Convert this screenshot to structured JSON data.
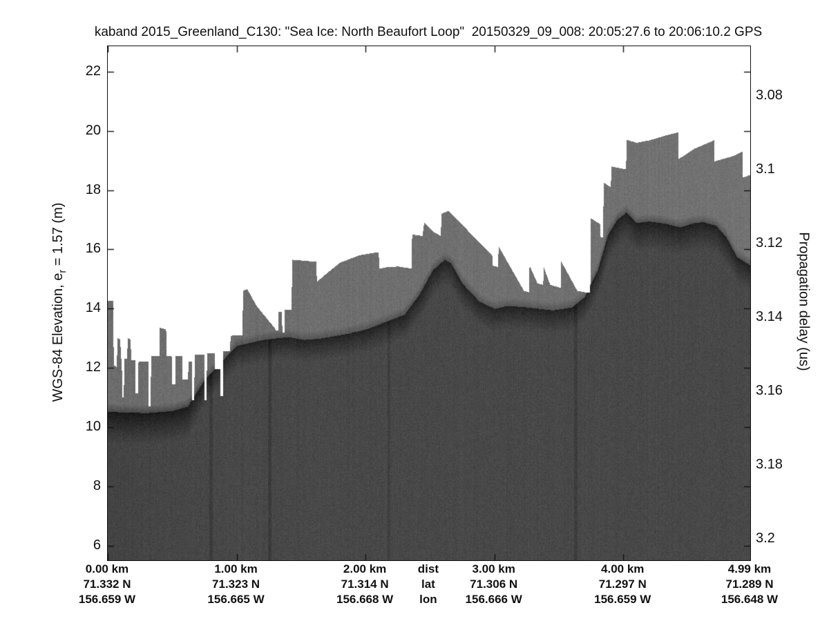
{
  "figure": {
    "title": "kaband 2015_Greenland_C130: \"Sea Ice: North Beaufort Loop\"  20150329_09_008: 20:05:27.6 to 20:06:10.2 GPS",
    "left_axis_label": {
      "pre": "WGS-84 Elevation, e",
      "sub": "r",
      "post": " = 1.57 (m)"
    },
    "right_axis_label": "Propagation delay (us)"
  },
  "chart_data": {
    "type": "heatmap",
    "description": "Ka-band radar altimeter echogram over sea ice: grayscale backscatter intensity versus along-track distance (km) and WGS-84 elevation (m); white = no return, gray speckle = snow/ice volume return, dark band = strong surface return.",
    "title": "kaband 2015_Greenland_C130: \"Sea Ice: North Beaufort Loop\"  20150329_09_008: 20:05:27.6 to 20:06:10.2 GPS",
    "ylabel_left": "WGS-84 Elevation, e_r = 1.57 (m)",
    "ylabel_right": "Propagation delay (us)",
    "xlim_km": [
      0,
      4.985
    ],
    "ylim_elev_m": [
      5.5,
      22.86
    ],
    "grid": false,
    "x_ticks_km": [
      0,
      1,
      2,
      3,
      4
    ],
    "y_ticks_left_m": [
      22,
      20,
      18,
      16,
      14,
      12,
      10,
      8,
      6
    ],
    "y_ticks_right_us": [
      3.08,
      3.1,
      3.12,
      3.14,
      3.16,
      3.18,
      3.2
    ],
    "right_axis_map": {
      "ref_delay_us": 3.1,
      "ref_elev_m": 18.69,
      "m_per_us": -124.7
    },
    "x_header_rows": [
      "dist",
      "lat",
      "lon"
    ],
    "x_columns": [
      {
        "km": 0,
        "dist": "0.00 km",
        "lat": "71.332 N",
        "lon": "156.659 W"
      },
      {
        "km": 1,
        "dist": "1.00 km",
        "lat": "71.323 N",
        "lon": "156.665 W"
      },
      {
        "km": 2,
        "dist": "2.00 km",
        "lat": "71.314 N",
        "lon": "156.668 W"
      },
      {
        "km": 2.492,
        "dist": "dist",
        "lat": "lat",
        "lon": "lon",
        "header": true
      },
      {
        "km": 3,
        "dist": "3.00 km",
        "lat": "71.306 N",
        "lon": "156.666 W"
      },
      {
        "km": 4,
        "dist": "4.00 km",
        "lat": "71.297 N",
        "lon": "156.659 W"
      },
      {
        "km": 4.985,
        "dist": "4.99 km",
        "lat": "71.289 N",
        "lon": "156.648 W"
      }
    ],
    "surface_profile_km_m": [
      [
        0.0,
        14.25
      ],
      [
        0.04,
        14.25
      ],
      [
        0.044,
        12.1
      ],
      [
        0.068,
        12.0
      ],
      [
        0.072,
        13.0
      ],
      [
        0.095,
        12.95
      ],
      [
        0.099,
        12.3
      ],
      [
        0.106,
        12.3
      ],
      [
        0.11,
        11.0
      ],
      [
        0.122,
        11.0
      ],
      [
        0.126,
        12.3
      ],
      [
        0.148,
        12.3
      ],
      [
        0.152,
        13.0
      ],
      [
        0.175,
        12.95
      ],
      [
        0.179,
        12.25
      ],
      [
        0.21,
        12.25
      ],
      [
        0.214,
        11.15
      ],
      [
        0.232,
        11.15
      ],
      [
        0.236,
        12.2
      ],
      [
        0.312,
        12.2
      ],
      [
        0.316,
        10.7
      ],
      [
        0.33,
        10.7
      ],
      [
        0.334,
        12.4
      ],
      [
        0.398,
        12.4
      ],
      [
        0.402,
        13.35
      ],
      [
        0.45,
        13.3
      ],
      [
        0.454,
        12.4
      ],
      [
        0.493,
        12.4
      ],
      [
        0.497,
        11.45
      ],
      [
        0.52,
        11.45
      ],
      [
        0.524,
        12.4
      ],
      [
        0.574,
        12.4
      ],
      [
        0.578,
        11.6
      ],
      [
        0.62,
        11.6
      ],
      [
        0.624,
        12.2
      ],
      [
        0.649,
        12.2
      ],
      [
        0.653,
        10.9
      ],
      [
        0.668,
        10.9
      ],
      [
        0.672,
        12.45
      ],
      [
        0.746,
        12.45
      ],
      [
        0.75,
        10.9
      ],
      [
        0.764,
        10.9
      ],
      [
        0.768,
        12.5
      ],
      [
        0.826,
        12.5
      ],
      [
        0.83,
        11.95
      ],
      [
        0.869,
        11.95
      ],
      [
        0.873,
        11.05
      ],
      [
        0.89,
        11.05
      ],
      [
        0.894,
        12.55
      ],
      [
        0.946,
        12.55
      ],
      [
        0.95,
        13.05
      ],
      [
        0.965,
        13.1
      ],
      [
        1.043,
        13.1
      ],
      [
        1.047,
        14.6
      ],
      [
        1.08,
        14.66
      ],
      [
        1.15,
        14.1
      ],
      [
        1.3,
        13.3
      ],
      [
        1.304,
        13.25
      ],
      [
        1.32,
        13.25
      ],
      [
        1.324,
        13.9
      ],
      [
        1.348,
        13.9
      ],
      [
        1.352,
        13.2
      ],
      [
        1.368,
        13.2
      ],
      [
        1.372,
        13.95
      ],
      [
        1.424,
        13.95
      ],
      [
        1.428,
        15.65
      ],
      [
        1.616,
        15.58
      ],
      [
        1.62,
        14.9
      ],
      [
        1.7,
        15.2
      ],
      [
        1.8,
        15.55
      ],
      [
        1.95,
        15.8
      ],
      [
        2.06,
        15.88
      ],
      [
        2.1,
        15.9
      ],
      [
        2.104,
        15.35
      ],
      [
        2.17,
        15.4
      ],
      [
        2.25,
        15.42
      ],
      [
        2.355,
        15.35
      ],
      [
        2.359,
        16.5
      ],
      [
        2.44,
        16.45
      ],
      [
        2.452,
        16.9
      ],
      [
        2.528,
        16.58
      ],
      [
        2.582,
        16.45
      ],
      [
        2.586,
        17.2
      ],
      [
        2.64,
        17.3
      ],
      [
        2.98,
        15.8
      ],
      [
        2.984,
        15.45
      ],
      [
        3.026,
        15.4
      ],
      [
        3.03,
        16.1
      ],
      [
        3.226,
        14.6
      ],
      [
        3.266,
        14.55
      ],
      [
        3.27,
        15.45
      ],
      [
        3.326,
        14.9
      ],
      [
        3.33,
        14.85
      ],
      [
        3.376,
        14.8
      ],
      [
        3.38,
        15.4
      ],
      [
        3.426,
        14.85
      ],
      [
        3.43,
        14.8
      ],
      [
        3.511,
        14.7
      ],
      [
        3.515,
        15.6
      ],
      [
        3.64,
        14.6
      ],
      [
        3.7,
        14.55
      ],
      [
        3.741,
        14.55
      ],
      [
        3.745,
        17.05
      ],
      [
        3.818,
        16.85
      ],
      [
        3.822,
        16.4
      ],
      [
        3.841,
        16.4
      ],
      [
        3.845,
        18.25
      ],
      [
        3.901,
        18.1
      ],
      [
        3.905,
        18.8
      ],
      [
        4.019,
        18.7
      ],
      [
        4.023,
        19.7
      ],
      [
        4.1,
        19.6
      ],
      [
        4.2,
        19.68
      ],
      [
        4.33,
        19.85
      ],
      [
        4.423,
        19.95
      ],
      [
        4.427,
        19.05
      ],
      [
        4.55,
        19.4
      ],
      [
        4.701,
        19.68
      ],
      [
        4.705,
        18.97
      ],
      [
        4.85,
        19.15
      ],
      [
        4.921,
        19.3
      ],
      [
        4.925,
        18.42
      ],
      [
        4.985,
        18.52
      ]
    ],
    "return_profile_km_m": [
      [
        0.0,
        10.52
      ],
      [
        0.3,
        10.48
      ],
      [
        0.5,
        10.55
      ],
      [
        0.62,
        10.7
      ],
      [
        0.75,
        11.6
      ],
      [
        0.9,
        12.3
      ],
      [
        1.0,
        12.75
      ],
      [
        1.2,
        12.95
      ],
      [
        1.4,
        13.05
      ],
      [
        1.52,
        12.95
      ],
      [
        1.65,
        13.0
      ],
      [
        1.85,
        13.15
      ],
      [
        2.0,
        13.3
      ],
      [
        2.15,
        13.55
      ],
      [
        2.3,
        13.8
      ],
      [
        2.42,
        14.5
      ],
      [
        2.52,
        15.3
      ],
      [
        2.61,
        15.65
      ],
      [
        2.66,
        15.55
      ],
      [
        2.75,
        14.85
      ],
      [
        2.88,
        14.25
      ],
      [
        3.0,
        14.0
      ],
      [
        3.1,
        14.1
      ],
      [
        3.25,
        14.05
      ],
      [
        3.45,
        13.95
      ],
      [
        3.6,
        14.05
      ],
      [
        3.7,
        14.4
      ],
      [
        3.8,
        15.3
      ],
      [
        3.88,
        16.5
      ],
      [
        3.95,
        17.0
      ],
      [
        4.02,
        17.25
      ],
      [
        4.1,
        16.9
      ],
      [
        4.2,
        16.95
      ],
      [
        4.32,
        16.88
      ],
      [
        4.44,
        16.75
      ],
      [
        4.55,
        16.9
      ],
      [
        4.62,
        16.93
      ],
      [
        4.72,
        16.8
      ],
      [
        4.8,
        16.4
      ],
      [
        4.88,
        15.75
      ],
      [
        4.99,
        15.45
      ]
    ],
    "return_smear_strength_km": [
      [
        0.0,
        1.0
      ],
      [
        0.62,
        1.0
      ],
      [
        0.8,
        0.6
      ],
      [
        1.6,
        0.55
      ],
      [
        2.2,
        0.6
      ],
      [
        2.55,
        0.75
      ],
      [
        2.9,
        0.6
      ],
      [
        3.6,
        0.55
      ],
      [
        3.9,
        0.8
      ],
      [
        4.3,
        0.85
      ],
      [
        4.8,
        0.75
      ],
      [
        4.99,
        0.7
      ]
    ],
    "deep_streaks": [
      {
        "km": 0.8,
        "w": 5,
        "amp": 12
      },
      {
        "km": 1.253,
        "w": 5,
        "amp": 13
      },
      {
        "km": 2.18,
        "w": 4,
        "amp": 9
      },
      {
        "km": 3.63,
        "w": 5,
        "amp": 11
      }
    ],
    "colors": {
      "background": "#ffffff",
      "layer_gray": "#6e6e6e",
      "deep_gray": "#484848",
      "return_dark": "#1c1c1c",
      "axis": "#111111"
    },
    "noise": {
      "pixel": 20,
      "column": 12,
      "seed": 42
    }
  }
}
